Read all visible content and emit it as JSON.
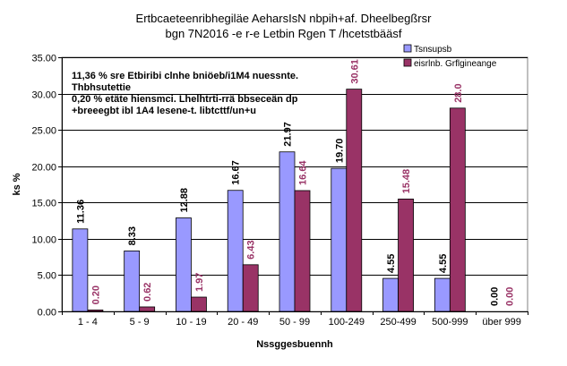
{
  "chart_data": {
    "type": "bar",
    "title_line1": "Ertbcaeteenribhegiläe AeharsIsN nbpih+af. Dheelbegßrsr",
    "title_line2": "bgn 7N2016 -e r-e Letbin Rgen T /hcetstbääsf",
    "xlabel": "Nssggesbuennh",
    "ylabel": "ks %",
    "ylim": [
      0,
      35
    ],
    "yticks": [
      "0.00",
      "5.00",
      "10.00",
      "15.00",
      "20.00",
      "25.00",
      "30.00",
      "35.00"
    ],
    "categories": [
      "1 - 4",
      "5 - 9",
      "10 - 19",
      "20 - 49",
      "50 - 99",
      "100-249",
      "250-499",
      "500-999",
      "über 999"
    ],
    "series": [
      {
        "name": "Tsnsupsb",
        "color": "#9999ff",
        "label_color": "#000000",
        "values": [
          11.36,
          8.33,
          12.88,
          16.67,
          21.97,
          19.7,
          4.55,
          4.55,
          0.0
        ],
        "labels": [
          "11.36",
          "8.33",
          "12.88",
          "16.67",
          "21.97",
          "19.70",
          "4.55",
          "4.55",
          "0.00"
        ]
      },
      {
        "name": "eisrlnb. Grflgineange",
        "color": "#993366",
        "label_color": "#993366",
        "values": [
          0.2,
          0.62,
          1.97,
          6.43,
          16.64,
          30.61,
          15.48,
          28.0,
          0.0
        ],
        "labels": [
          "0.20",
          "0.62",
          "1.97",
          "6.43",
          "16.64",
          "30.61",
          "15.48",
          "28.0",
          "0.00"
        ]
      }
    ],
    "annotation": [
      "11,36 % sre Etbiribi clnhe bniöeb/i1M4 nuessnte.",
      "Thbhsutettie",
      "0,20 % etäte hiensmci. Lhelhtrti-rrä bbseceän dp",
      "+breeegbt ibl 1A4 lesene-t. libtcttf/un+u"
    ],
    "grid": true,
    "legend_position": "top-right"
  }
}
